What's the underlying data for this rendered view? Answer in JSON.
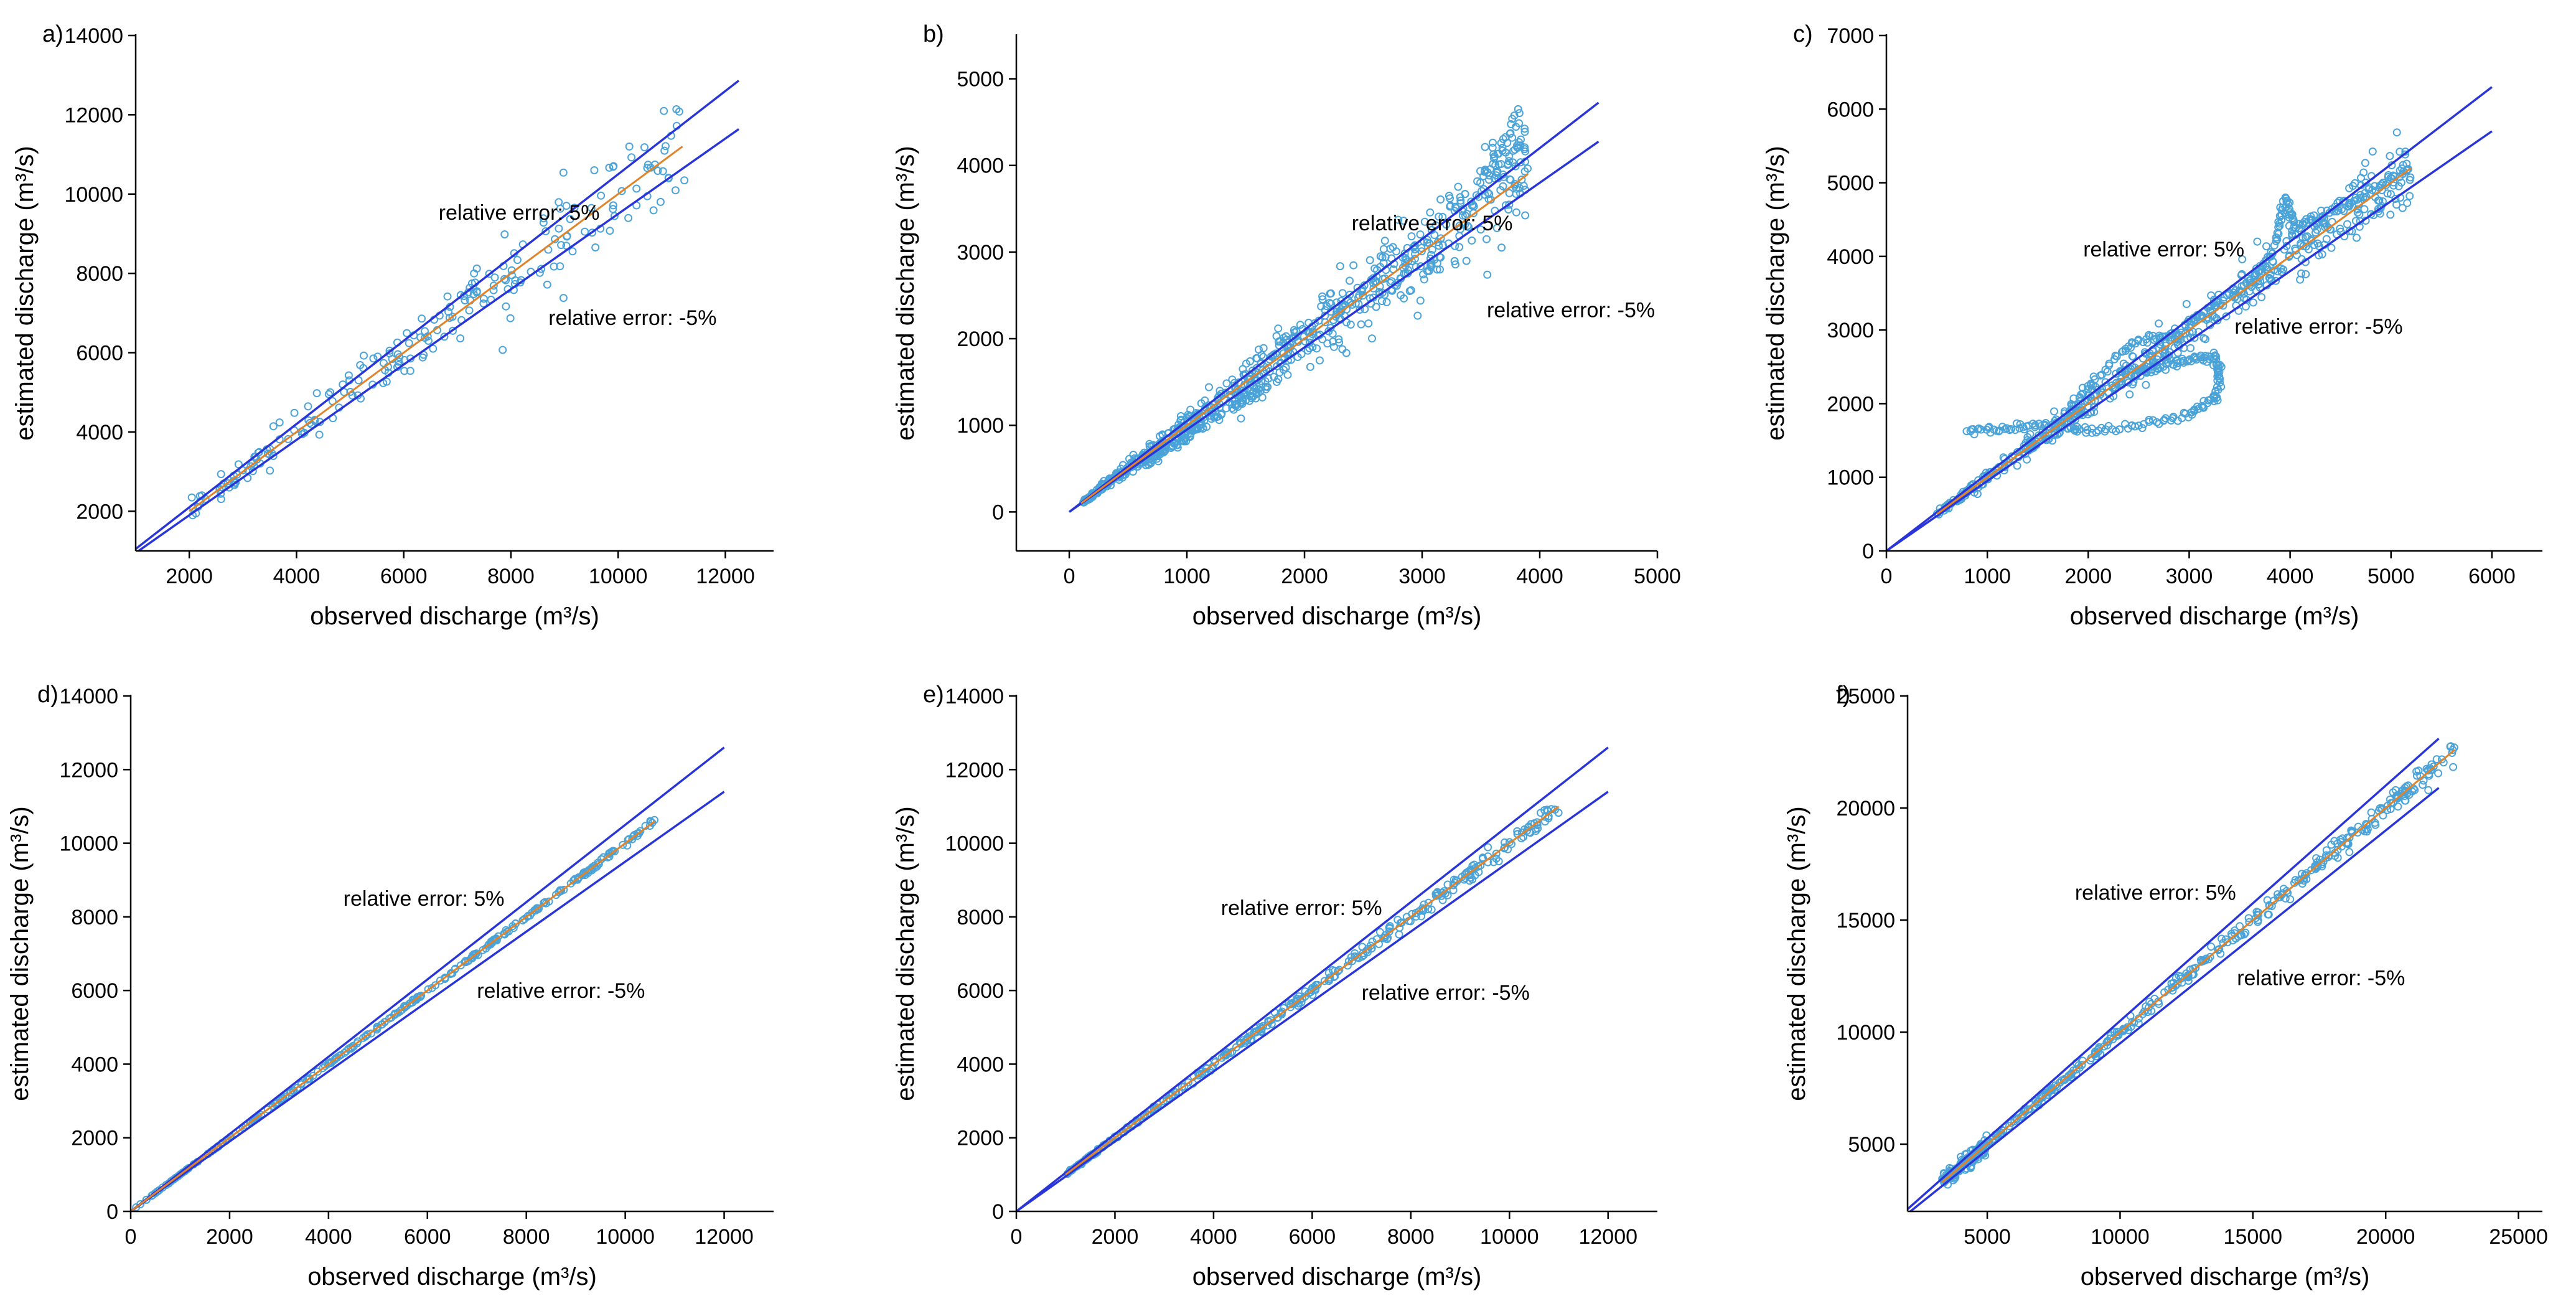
{
  "figure": {
    "colors": {
      "error_lines": "#2a35d8",
      "markers": "#4aa3d8",
      "fit_line": "#e0832a",
      "axis": "#000000"
    }
  },
  "chart_data": [
    {
      "label": "a)",
      "type": "scatter",
      "xlabel": "observed discharge (m³/s)",
      "ylabel": "estimated discharge (m³/s)",
      "xlim": [
        1000,
        12900
      ],
      "ylim": [
        1000,
        14000
      ],
      "xticks": [
        2000,
        4000,
        6000,
        8000,
        10000,
        12000
      ],
      "xtick_labels": [
        "2000",
        "4000",
        "6000",
        "8000",
        "10000",
        "12000"
      ],
      "yticks": [
        2000,
        4000,
        6000,
        8000,
        10000,
        12000,
        14000
      ],
      "ytick_labels": [
        "2000",
        "4000",
        "6000",
        "8000",
        "10000",
        "12000",
        "14000"
      ],
      "reference_lines": [
        {
          "relative_error": 0.05,
          "x_range": [
            1000,
            12250
          ]
        },
        {
          "relative_error": -0.05,
          "x_range": [
            1000,
            12250
          ]
        }
      ],
      "fit_line": {
        "x_range": [
          2000,
          11200
        ]
      },
      "scatter_series": [
        {
          "x_range": [
            2000,
            11300
          ],
          "scatter": 0.06,
          "count": 230,
          "seed": 11
        }
      ],
      "annotations": [
        {
          "text": "relative error: 5%",
          "x": 6650,
          "y": 9350
        },
        {
          "text": "relative error: -5%",
          "x": 8700,
          "y": 6700
        }
      ],
      "grid": false,
      "legend": "none"
    },
    {
      "label": "b)",
      "type": "scatter",
      "xlabel": "observed discharge (m³/s)",
      "ylabel": "estimated discharge (m³/s)",
      "xlim": [
        -450,
        5000
      ],
      "ylim": [
        -450,
        5500
      ],
      "xticks": [
        0,
        1000,
        2000,
        3000,
        4000,
        5000
      ],
      "xtick_labels": [
        "0",
        "1000",
        "2000",
        "3000",
        "4000",
        "5000"
      ],
      "yticks": [
        0,
        1000,
        2000,
        3000,
        4000,
        5000
      ],
      "ytick_labels": [
        "0",
        "1000",
        "2000",
        "3000",
        "4000",
        "5000"
      ],
      "reference_lines": [
        {
          "relative_error": 0.05,
          "x_range": [
            0,
            4500
          ]
        },
        {
          "relative_error": -0.05,
          "x_range": [
            0,
            4500
          ]
        }
      ],
      "fit_line": {
        "x_range": [
          100,
          3900
        ]
      },
      "scatter_series": [
        {
          "x_range": [
            100,
            3900
          ],
          "scatter": 0.08,
          "count": 620,
          "seed": 23
        },
        {
          "x_range": [
            650,
            1800
          ],
          "scatter": 0.04,
          "bias": -0.12,
          "count": 120,
          "seed": 24
        },
        {
          "x_range": [
            3500,
            3900
          ],
          "scatter": 0.04,
          "bias": 0.12,
          "count": 40,
          "seed": 25
        }
      ],
      "annotations": [
        {
          "text": "relative error: 5%",
          "x": 2400,
          "y": 3250
        },
        {
          "text": "relative error: -5%",
          "x": 3550,
          "y": 2250
        }
      ],
      "grid": false,
      "legend": "none"
    },
    {
      "label": "c)",
      "type": "scatter",
      "xlabel": "observed discharge (m³/s)",
      "ylabel": "estimated discharge (m³/s)",
      "xlim": [
        0,
        6500
      ],
      "ylim": [
        0,
        7000
      ],
      "xticks": [
        0,
        1000,
        2000,
        3000,
        4000,
        5000,
        6000
      ],
      "xtick_labels": [
        "0",
        "1000",
        "2000",
        "3000",
        "4000",
        "5000",
        "6000"
      ],
      "yticks": [
        0,
        1000,
        2000,
        3000,
        4000,
        5000,
        6000,
        7000
      ],
      "ytick_labels": [
        "0",
        "1000",
        "2000",
        "3000",
        "4000",
        "5000",
        "6000",
        "7000"
      ],
      "reference_lines": [
        {
          "relative_error": 0.05,
          "x_range": [
            0,
            6000
          ]
        },
        {
          "relative_error": -0.05,
          "x_range": [
            0,
            6000
          ]
        }
      ],
      "fit_line": {
        "x_range": [
          500,
          5200
        ]
      },
      "scatter_series": [
        {
          "x_range": [
            500,
            5200
          ],
          "scatter": 0.05,
          "count": 520,
          "seed": 31
        }
      ],
      "scatter_paths": [
        {
          "points": [
            [
              800,
              1620
            ],
            [
              1200,
              1670
            ],
            [
              1600,
              1700
            ],
            [
              2000,
              1650
            ],
            [
              2500,
              1700
            ],
            [
              3000,
              1850
            ],
            [
              3250,
              2050
            ],
            [
              3300,
              2400
            ],
            [
              3250,
              2650
            ],
            [
              3000,
              2600
            ],
            [
              2700,
              2500
            ],
            [
              2500,
              2450
            ]
          ],
          "density": 18
        },
        {
          "points": [
            [
              1700,
              1700
            ],
            [
              2000,
              2200
            ],
            [
              2300,
              2700
            ],
            [
              2600,
              2900
            ],
            [
              2900,
              2950
            ],
            [
              3200,
              3300
            ],
            [
              3600,
              3650
            ],
            [
              3800,
              3950
            ],
            [
              3900,
              4450
            ],
            [
              3950,
              4800
            ],
            [
              4050,
              4400
            ],
            [
              4300,
              4550
            ],
            [
              4700,
              4800
            ],
            [
              5200,
              5200
            ]
          ],
          "density": 14
        }
      ],
      "annotations": [
        {
          "text": "relative error: 5%",
          "x": 1950,
          "y": 4000
        },
        {
          "text": "relative error: -5%",
          "x": 3450,
          "y": 2950
        }
      ],
      "grid": false,
      "legend": "none"
    },
    {
      "label": "d)",
      "type": "scatter",
      "xlabel": "observed discharge (m³/s)",
      "ylabel": "estimated discharge (m³/s)",
      "xlim": [
        0,
        13000
      ],
      "ylim": [
        0,
        14000
      ],
      "xticks": [
        0,
        2000,
        4000,
        6000,
        8000,
        10000,
        12000
      ],
      "xtick_labels": [
        "0",
        "2000",
        "4000",
        "6000",
        "8000",
        "10000",
        "12000"
      ],
      "yticks": [
        0,
        2000,
        4000,
        6000,
        8000,
        10000,
        12000,
        14000
      ],
      "ytick_labels": [
        "0",
        "2000",
        "4000",
        "6000",
        "8000",
        "10000",
        "12000",
        "14000"
      ],
      "reference_lines": [
        {
          "relative_error": 0.05,
          "x_range": [
            0,
            12000
          ]
        },
        {
          "relative_error": -0.05,
          "x_range": [
            0,
            12000
          ]
        }
      ],
      "fit_line": {
        "x_range": [
          0,
          10600
        ]
      },
      "scatter_series": [
        {
          "x_range": [
            100,
            10600
          ],
          "scatter": 0.004,
          "count": 280,
          "seed": 41
        }
      ],
      "annotations": [
        {
          "text": "relative error: 5%",
          "x": 4300,
          "y": 8300
        },
        {
          "text": "relative error: -5%",
          "x": 7000,
          "y": 5800
        }
      ],
      "grid": false,
      "legend": "none"
    },
    {
      "label": "e)",
      "type": "scatter",
      "xlabel": "observed discharge (m³/s)",
      "ylabel": "estimated discharge (m³/s)",
      "xlim": [
        0,
        13000
      ],
      "ylim": [
        0,
        14000
      ],
      "xticks": [
        0,
        2000,
        4000,
        6000,
        8000,
        10000,
        12000
      ],
      "xtick_labels": [
        "0",
        "2000",
        "4000",
        "6000",
        "8000",
        "10000",
        "12000"
      ],
      "yticks": [
        0,
        2000,
        4000,
        6000,
        8000,
        10000,
        12000,
        14000
      ],
      "ytick_labels": [
        "0",
        "2000",
        "4000",
        "6000",
        "8000",
        "10000",
        "12000",
        "14000"
      ],
      "reference_lines": [
        {
          "relative_error": 0.05,
          "x_range": [
            0,
            12000
          ]
        },
        {
          "relative_error": -0.05,
          "x_range": [
            0,
            12000
          ]
        }
      ],
      "fit_line": {
        "x_range": [
          1000,
          11000
        ]
      },
      "scatter_series": [
        {
          "x_range": [
            1000,
            11000
          ],
          "scatter": 0.012,
          "count": 320,
          "seed": 51
        }
      ],
      "annotations": [
        {
          "text": "relative error: 5%",
          "x": 4150,
          "y": 8050
        },
        {
          "text": "relative error: -5%",
          "x": 7000,
          "y": 5750
        }
      ],
      "grid": false,
      "legend": "none"
    },
    {
      "label": "f)",
      "type": "scatter",
      "xlabel": "observed discharge (m³/s)",
      "ylabel": "estimated discharge (m³/s)",
      "xlim": [
        2000,
        25900
      ],
      "ylim": [
        2000,
        25000
      ],
      "xticks": [
        5000,
        10000,
        15000,
        20000,
        25000
      ],
      "xtick_labels": [
        "5000",
        "10000",
        "15000",
        "20000",
        "25000"
      ],
      "yticks": [
        5000,
        10000,
        15000,
        20000,
        25000
      ],
      "ytick_labels": [
        "5000",
        "10000",
        "15000",
        "20000",
        "25000"
      ],
      "reference_lines": [
        {
          "relative_error": 0.05,
          "x_range": [
            2000,
            22000
          ]
        },
        {
          "relative_error": -0.05,
          "x_range": [
            2000,
            22000
          ]
        }
      ],
      "fit_line": {
        "x_range": [
          3300,
          22600
        ]
      },
      "scatter_series": [
        {
          "x_range": [
            3300,
            22600
          ],
          "scatter": 0.012,
          "count": 360,
          "seed": 61
        },
        {
          "x_range": [
            3300,
            5000
          ],
          "scatter": 0.05,
          "count": 120,
          "seed": 62
        }
      ],
      "annotations": [
        {
          "text": "relative error: 5%",
          "x": 8300,
          "y": 15900
        },
        {
          "text": "relative error: -5%",
          "x": 14400,
          "y": 12100
        }
      ],
      "grid": false,
      "legend": "none"
    }
  ]
}
